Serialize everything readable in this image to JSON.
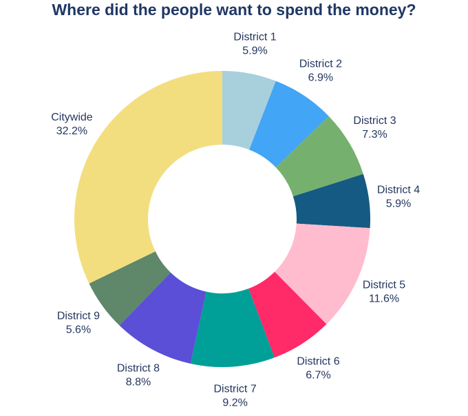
{
  "chart_data": {
    "type": "donut",
    "title": "Where did the people want to spend the money?",
    "categories": [
      "District 1",
      "District 2",
      "District 3",
      "District 4",
      "District 5",
      "District 6",
      "District 7",
      "District 8",
      "District 9",
      "Citywide"
    ],
    "values": [
      5.9,
      6.9,
      7.3,
      5.9,
      11.6,
      6.7,
      9.2,
      8.8,
      5.6,
      32.2
    ],
    "value_labels": [
      "5.9%",
      "6.9%",
      "7.3%",
      "5.9%",
      "11.6%",
      "6.7%",
      "9.2%",
      "8.8%",
      "5.6%",
      "32.2%"
    ],
    "colors": [
      "#a8cfdc",
      "#42a5f5",
      "#76b06e",
      "#155a82",
      "#ffbccf",
      "#ff2a68",
      "#009f98",
      "#5a4fd6",
      "#5f876a",
      "#f3de7f"
    ]
  }
}
